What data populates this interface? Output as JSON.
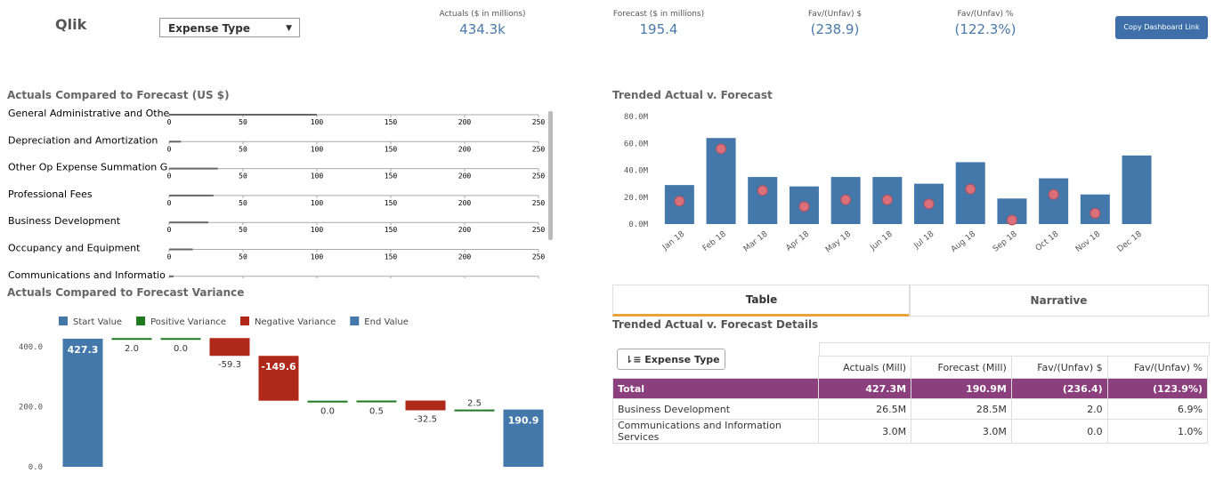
{
  "header": {
    "logo": "Qlik",
    "dropdown": "Expense Type",
    "button": "Copy Dashboard Link"
  },
  "kpis": [
    {
      "label": "Actuals ($ in millions)",
      "value": "434.3k"
    },
    {
      "label": "Forecast ($ in millions)",
      "value": "195.4"
    },
    {
      "label": "Fav/(Unfav) $",
      "value": "(238.9)"
    },
    {
      "label": "Fav/(Unfav) %",
      "value": "(122.3%)"
    }
  ],
  "chart_data": [
    {
      "type": "bullet",
      "title": "Actuals Compared to Forecast (US $)",
      "categories": [
        "General Administrative and Othe",
        "Depreciation and Amortization",
        "Other Op Expense Summation G",
        "Professional Fees",
        "Business Development",
        "Occupancy and Equipment",
        "Communications and Informatio"
      ],
      "values": [
        100,
        8,
        33,
        30,
        26.5,
        16,
        3
      ],
      "xlim": [
        0,
        250
      ],
      "xticks": [
        0,
        50,
        100,
        150,
        200,
        250
      ],
      "color": "#666666"
    },
    {
      "type": "bar",
      "title": "Trended Actual v. Forecast",
      "categories": [
        "Jan 18",
        "Feb 18",
        "Mar 18",
        "Apr 18",
        "May 18",
        "Jun 18",
        "Jul 18",
        "Aug 18",
        "Sep 18",
        "Oct 18",
        "Nov 18",
        "Dec 18"
      ],
      "series": [
        {
          "color": "#4477aa",
          "values": [
            29,
            64,
            35,
            28,
            35,
            35,
            30,
            46,
            19,
            34,
            22,
            51
          ]
        },
        {
          "color": "#d9707a",
          "values": [
            17,
            56,
            25,
            13,
            18,
            18,
            15,
            26,
            3,
            22,
            8,
            null
          ]
        }
      ],
      "ylim": [
        0,
        82
      ],
      "yticks": [
        {
          "value": 0,
          "label": "0.0M"
        },
        {
          "value": 20,
          "label": "20.0M"
        },
        {
          "value": 40,
          "label": "40.0M"
        },
        {
          "value": 60,
          "label": "60.0M"
        },
        {
          "value": 80,
          "label": "80.0M"
        }
      ]
    },
    {
      "type": "waterfall",
      "title": "Actuals Compared to Forecast Variance",
      "series": [
        {
          "name": "Start Value",
          "color": "#4477aa"
        },
        {
          "name": "Positive Variance",
          "color": "#1f7a1f"
        },
        {
          "name": "Negative Variance",
          "color": "#b0281a"
        },
        {
          "name": "End Value",
          "color": "#4477aa"
        }
      ],
      "values": [
        427.3,
        2,
        0,
        -59.3,
        -149.6,
        0,
        0.5,
        -32.5,
        2.5,
        190.9
      ],
      "value_labels": [
        "427.3",
        "2.0",
        "0.0",
        "-59.3",
        "-149.6",
        "0.0",
        "0.5",
        "-32.5",
        "2.5",
        "190.9"
      ],
      "ylim": [
        0,
        430
      ],
      "yticks": [
        {
          "value": 0,
          "label": "0.0"
        },
        {
          "value": 200,
          "label": "200.0"
        },
        {
          "value": 400,
          "label": "400.0"
        }
      ]
    }
  ],
  "tabs": [
    "Table",
    "Narrative"
  ],
  "table": {
    "title": "Trended Actual v. Forecast Details",
    "search": "Expense Type",
    "columns": [
      "Actuals (Mill)",
      "Forecast (Mill)",
      "Fav/(Unfav) $",
      "Fav/(Unfav) %"
    ],
    "rows": [
      [
        "Total",
        "427.3M",
        "190.9M",
        "(236.4)",
        "(123.9%)"
      ],
      [
        "Business Development",
        "26.5M",
        "28.5M",
        "2.0",
        "6.9%"
      ],
      [
        "Communications and Information Services",
        "3.0M",
        "3.0M",
        "0.0",
        "1.0%"
      ]
    ]
  }
}
